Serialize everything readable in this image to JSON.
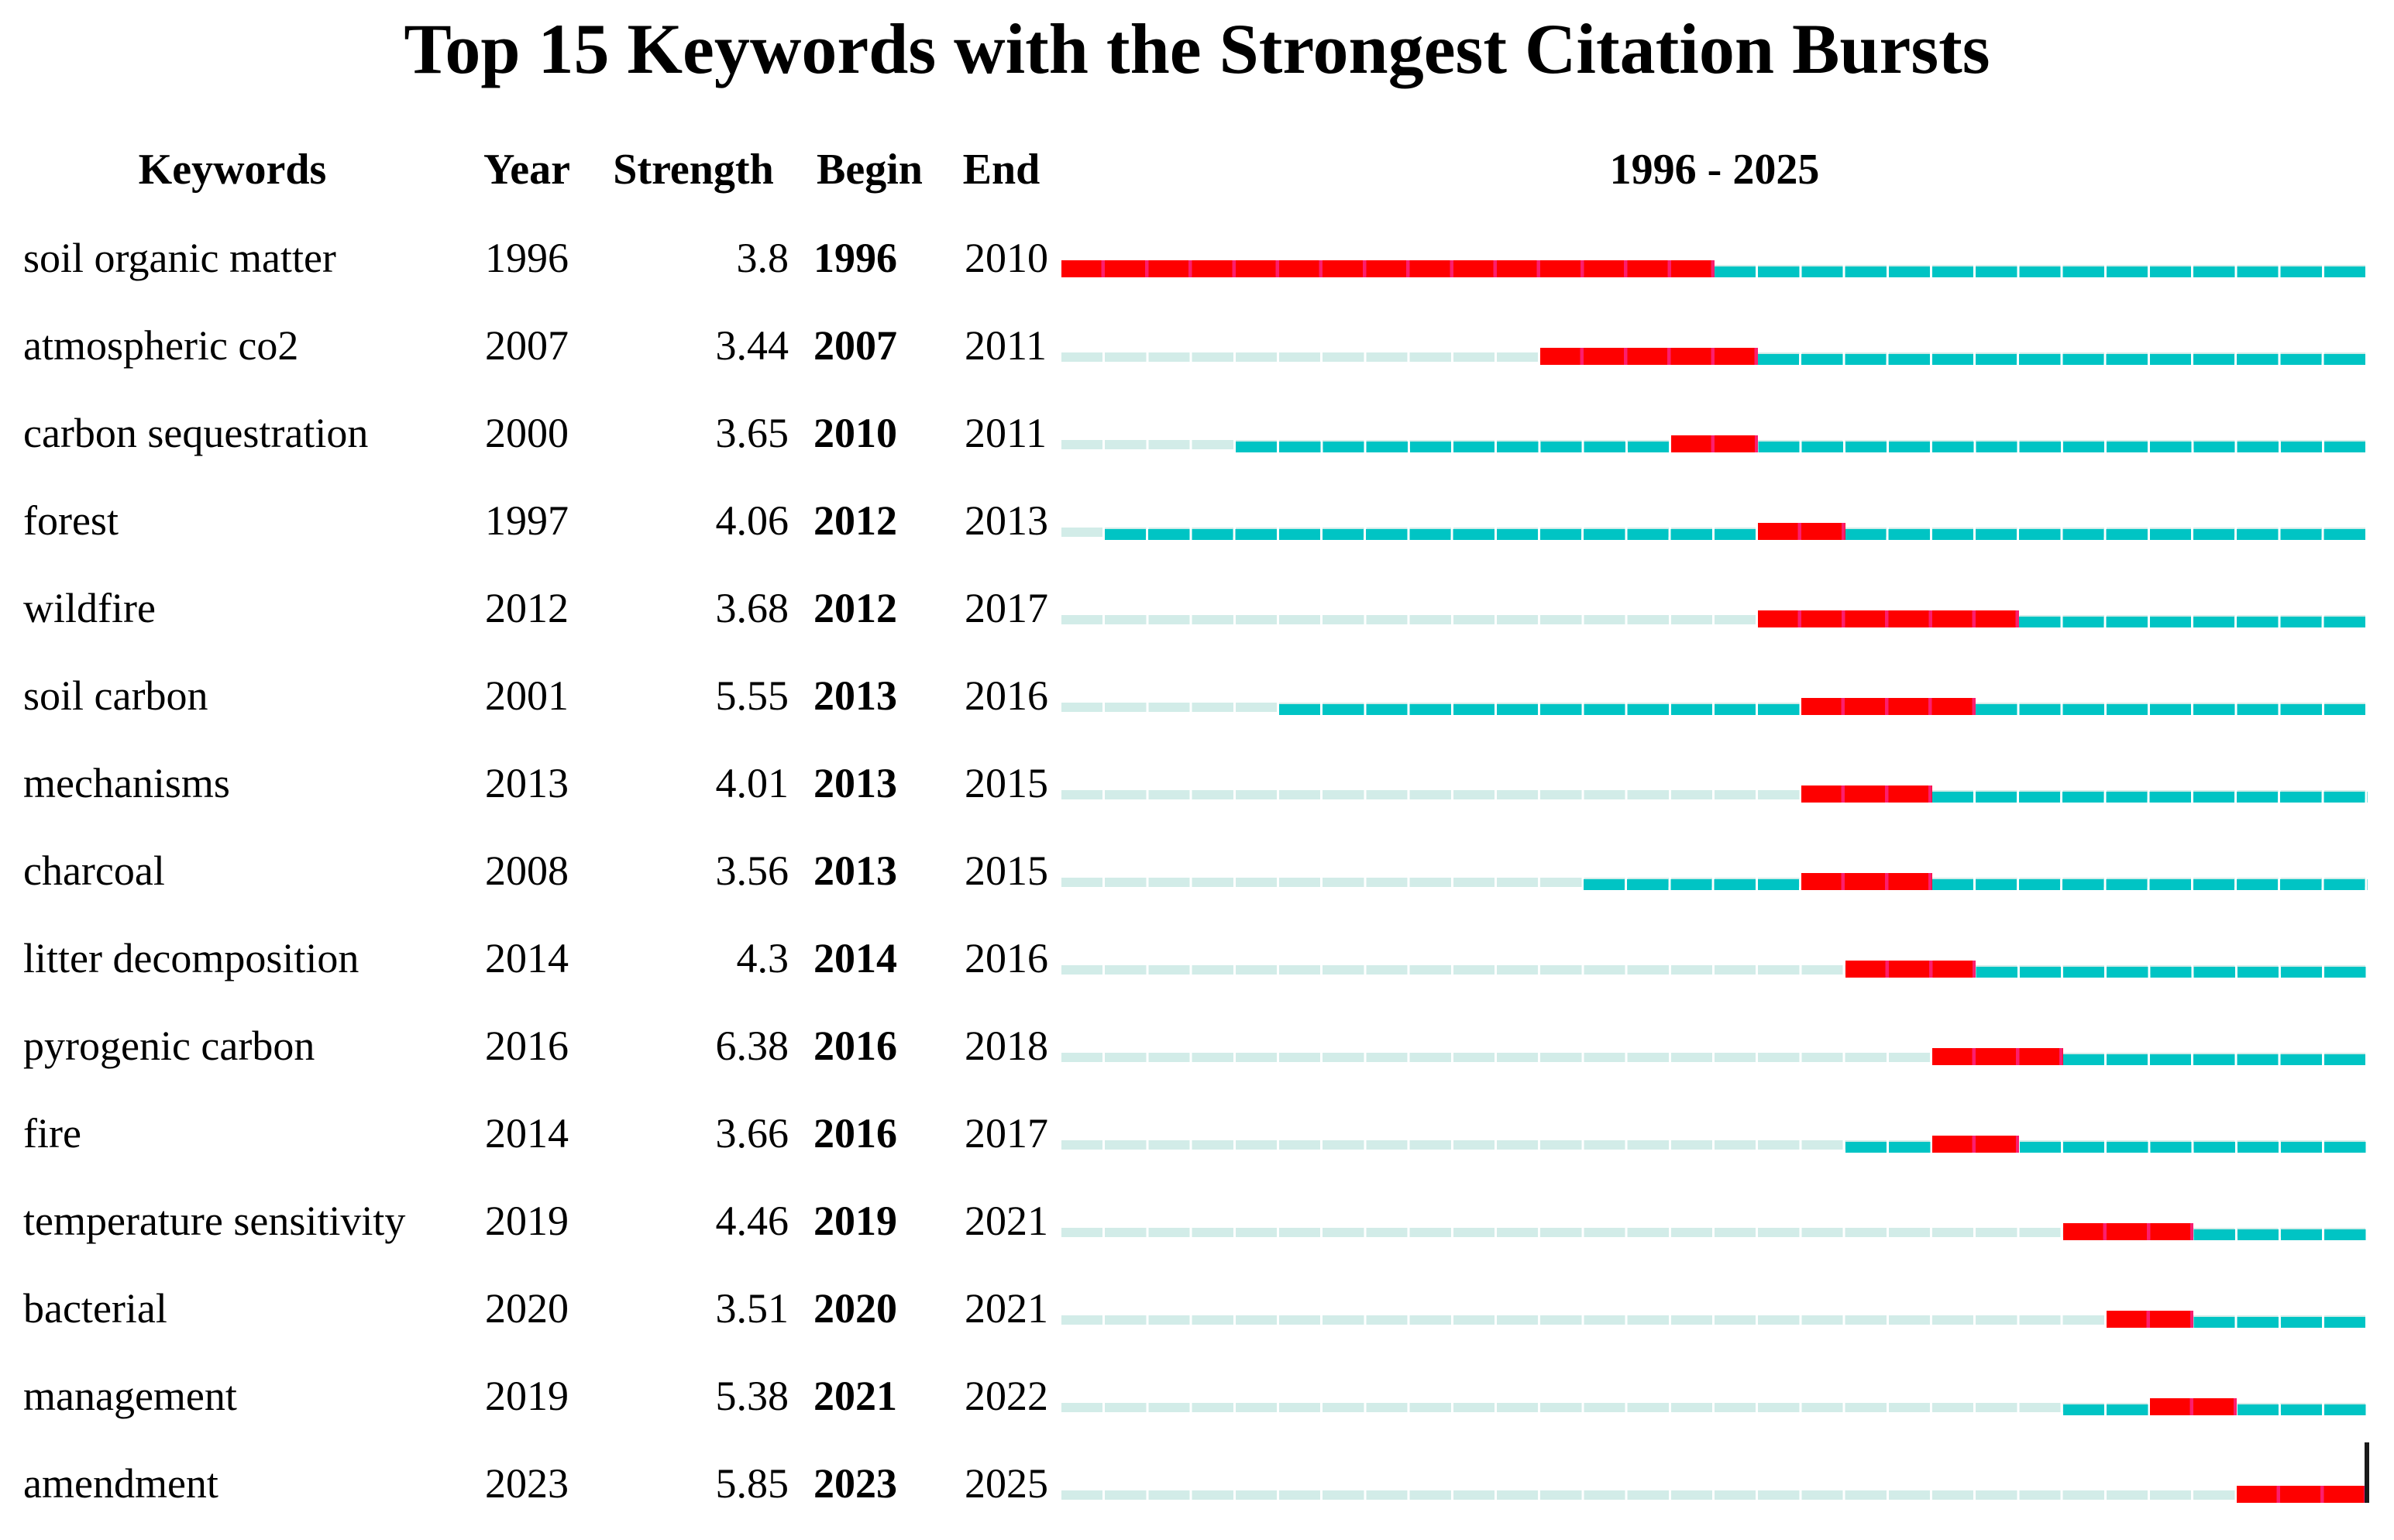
{
  "title": "Top 15 Keywords with the Strongest Citation Bursts",
  "columns": {
    "keywords": "Keywords",
    "year": "Year",
    "strength": "Strength",
    "begin": "Begin",
    "end": "End",
    "timeline": "1996 - 2025"
  },
  "chart_data": {
    "type": "bar",
    "variant": "citation-burst-timeline",
    "title": "Top 15 Keywords with the Strongest Citation Bursts",
    "x_range": [
      1996,
      2025
    ],
    "legend_semantics": {
      "inactive": "years before keyword first appears",
      "active": "years keyword is present",
      "burst": "citation burst interval (Begin-End)"
    },
    "colors": {
      "burst": "#FE0000",
      "burst_divider": "#FB1E6E",
      "active": "#00C4C4",
      "inactive": "#D2ECE8",
      "divider_light": "rgba(255,255,255,0.45)",
      "end_cursor": "#1A1A1A"
    },
    "rows": [
      {
        "keyword": "soil organic matter",
        "year": 1996,
        "strength": "3.8",
        "begin": 1996,
        "end": 2010
      },
      {
        "keyword": "atmospheric co2",
        "year": 2007,
        "strength": "3.44",
        "begin": 2007,
        "end": 2011
      },
      {
        "keyword": "carbon sequestration",
        "year": 2000,
        "strength": "3.65",
        "begin": 2010,
        "end": 2011
      },
      {
        "keyword": "forest",
        "year": 1997,
        "strength": "4.06",
        "begin": 2012,
        "end": 2013
      },
      {
        "keyword": "wildfire",
        "year": 2012,
        "strength": "3.68",
        "begin": 2012,
        "end": 2017
      },
      {
        "keyword": "soil carbon",
        "year": 2001,
        "strength": "5.55",
        "begin": 2013,
        "end": 2016
      },
      {
        "keyword": "mechanisms",
        "year": 2013,
        "strength": "4.01",
        "begin": 2013,
        "end": 2015
      },
      {
        "keyword": "charcoal",
        "year": 2008,
        "strength": "3.56",
        "begin": 2013,
        "end": 2015
      },
      {
        "keyword": "litter decomposition",
        "year": 2014,
        "strength": "4.3",
        "begin": 2014,
        "end": 2016
      },
      {
        "keyword": "pyrogenic carbon",
        "year": 2016,
        "strength": "6.38",
        "begin": 2016,
        "end": 2018
      },
      {
        "keyword": "fire",
        "year": 2014,
        "strength": "3.66",
        "begin": 2016,
        "end": 2017
      },
      {
        "keyword": "temperature sensitivity",
        "year": 2019,
        "strength": "4.46",
        "begin": 2019,
        "end": 2021
      },
      {
        "keyword": "bacterial",
        "year": 2020,
        "strength": "3.51",
        "begin": 2020,
        "end": 2021
      },
      {
        "keyword": "management",
        "year": 2019,
        "strength": "5.38",
        "begin": 2021,
        "end": 2022
      },
      {
        "keyword": "amendment",
        "year": 2023,
        "strength": "5.85",
        "begin": 2023,
        "end": 2025
      }
    ],
    "end_cursor_on_last_row": true
  }
}
